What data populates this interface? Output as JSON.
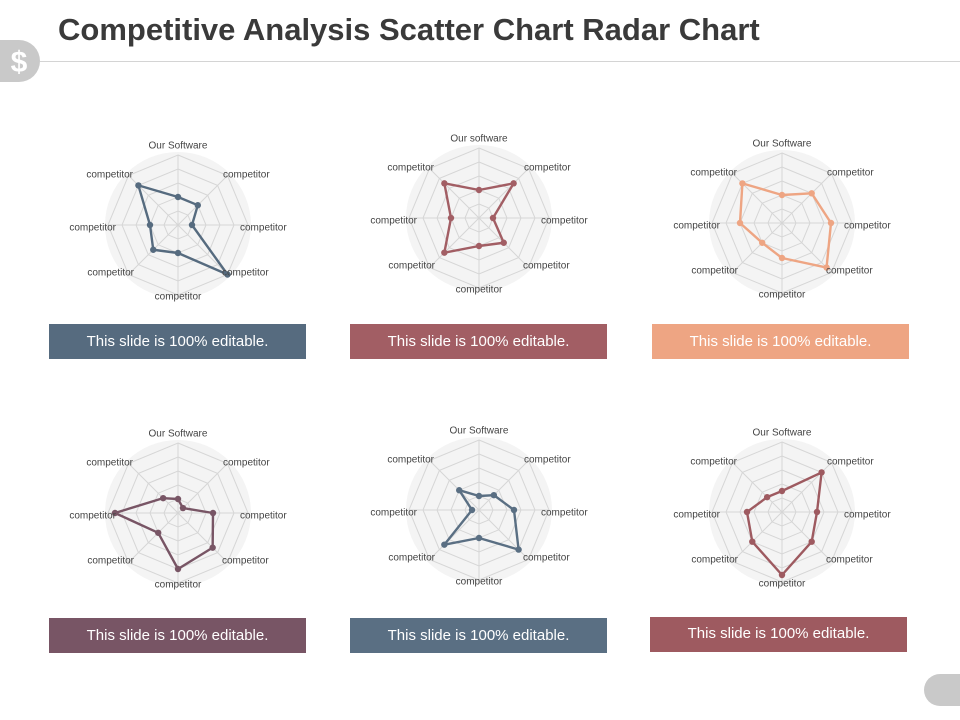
{
  "slide": {
    "title": "Competitive Analysis Scatter Chart Radar Chart"
  },
  "icons": {
    "corner_tab": "dollar-sign-icon"
  },
  "chart_data": [
    {
      "type": "radar",
      "axes": [
        "Our Software",
        "competitor",
        "competitor",
        "competitor",
        "competitor",
        "competitor",
        "competitor",
        "competitor"
      ],
      "rmax": 10,
      "color": "#566b7f",
      "values": [
        4,
        4,
        2,
        10,
        4,
        5,
        4,
        8
      ],
      "caption": "This slide is 100% editable."
    },
    {
      "type": "radar",
      "axes": [
        "Our software",
        "competitor",
        "competitor",
        "competitor",
        "competitor",
        "competitor",
        "competitor",
        "competitor"
      ],
      "rmax": 10,
      "color": "#a25e64",
      "values": [
        4,
        7,
        2,
        5,
        4,
        7,
        4,
        7
      ],
      "caption": "This slide is 100% editable."
    },
    {
      "type": "radar",
      "axes": [
        "Our Software",
        "competitor",
        "competitor",
        "competitor",
        "competitor",
        "competitor",
        "competitor",
        "competitor"
      ],
      "rmax": 10,
      "color": "#eea583",
      "values": [
        4,
        6,
        7,
        9,
        5,
        4,
        6,
        8
      ],
      "caption": "This slide is 100% editable."
    },
    {
      "type": "radar",
      "axes": [
        "Our Software",
        "competitor",
        "competitor",
        "competitor",
        "competitor",
        "competitor",
        "competitor",
        "competitor"
      ],
      "rmax": 10,
      "color": "#785565",
      "values": [
        2,
        1,
        5,
        7,
        8,
        4,
        9,
        3
      ],
      "caption": "This slide is 100% editable."
    },
    {
      "type": "radar",
      "axes": [
        "Our Software",
        "competitor",
        "competitor",
        "competitor",
        "competitor",
        "competitor",
        "competitor",
        "competitor"
      ],
      "rmax": 10,
      "color": "#5a6f83",
      "values": [
        2,
        3,
        5,
        8,
        4,
        7,
        1,
        4
      ],
      "caption": "This slide is 100% editable."
    },
    {
      "type": "radar",
      "axes": [
        "Our Software",
        "competitor",
        "competitor",
        "competitor",
        "competitor",
        "competitor",
        "competitor",
        "competitor"
      ],
      "rmax": 10,
      "color": "#9e5a60",
      "values": [
        3,
        8,
        5,
        6,
        9,
        6,
        5,
        3
      ],
      "caption": "This slide is 100% editable."
    }
  ]
}
